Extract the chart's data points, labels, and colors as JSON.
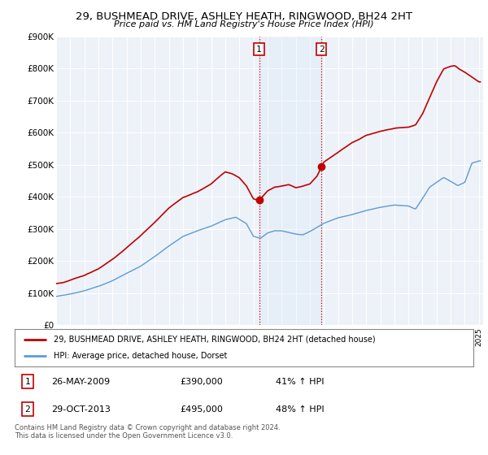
{
  "title": "29, BUSHMEAD DRIVE, ASHLEY HEATH, RINGWOOD, BH24 2HT",
  "subtitle": "Price paid vs. HM Land Registry's House Price Index (HPI)",
  "ylim": [
    0,
    900000
  ],
  "xlim_start": 1995.0,
  "xlim_end": 2025.3,
  "hpi_color": "#5b9bd5",
  "price_color": "#c00000",
  "transaction1_date": 2009.4,
  "transaction2_date": 2013.83,
  "transaction1_price": 390000,
  "transaction2_price": 495000,
  "legend_line1": "29, BUSHMEAD DRIVE, ASHLEY HEATH, RINGWOOD, BH24 2HT (detached house)",
  "legend_line2": "HPI: Average price, detached house, Dorset",
  "table_row1": [
    "1",
    "26-MAY-2009",
    "£390,000",
    "41% ↑ HPI"
  ],
  "table_row2": [
    "2",
    "29-OCT-2013",
    "£495,000",
    "48% ↑ HPI"
  ],
  "footer": "Contains HM Land Registry data © Crown copyright and database right 2024.\nThis data is licensed under the Open Government Licence v3.0.",
  "background_color": "#ffffff",
  "plot_bg_color": "#edf2f9"
}
